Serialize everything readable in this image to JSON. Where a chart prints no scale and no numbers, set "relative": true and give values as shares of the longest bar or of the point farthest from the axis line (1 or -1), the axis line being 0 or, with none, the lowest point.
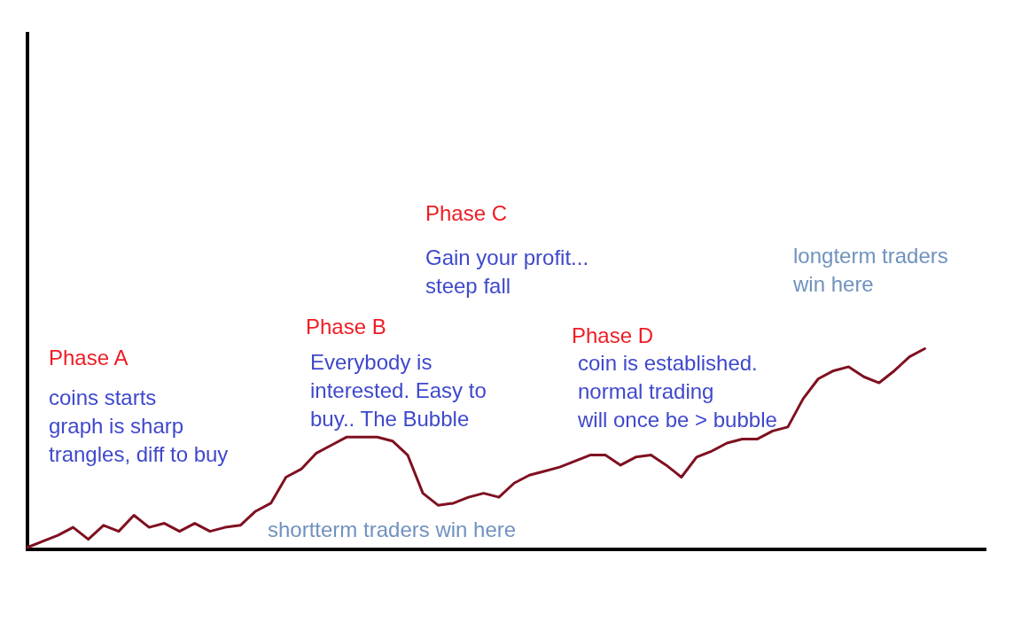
{
  "chart_data": {
    "type": "line",
    "relative": true,
    "color": "#7f1020",
    "grid": false,
    "legend": false,
    "tick_labels": false,
    "marker": "none",
    "line_style": "solid",
    "categories": [
      null,
      null,
      null,
      null,
      null,
      null,
      null,
      null,
      null,
      null,
      null,
      null,
      null,
      null,
      null,
      null,
      null,
      null,
      null,
      null,
      null,
      null,
      null,
      null,
      null,
      null,
      null,
      null,
      null,
      null,
      null,
      null,
      null,
      null,
      null,
      null,
      null,
      null,
      null,
      null,
      null,
      null,
      null,
      null,
      null,
      null,
      null,
      null,
      null,
      null,
      null,
      null,
      null,
      null,
      null,
      null,
      null,
      null,
      null,
      null,
      null,
      null,
      null,
      null
    ],
    "values": [
      0.01,
      0.04,
      0.07,
      0.11,
      0.05,
      0.12,
      0.09,
      0.17,
      0.11,
      0.13,
      0.09,
      0.13,
      0.09,
      0.11,
      0.12,
      0.19,
      0.23,
      0.36,
      0.4,
      0.48,
      0.52,
      0.56,
      0.56,
      0.56,
      0.54,
      0.47,
      0.28,
      0.22,
      0.23,
      0.26,
      0.28,
      0.26,
      0.33,
      0.37,
      0.39,
      0.41,
      0.44,
      0.47,
      0.47,
      0.42,
      0.46,
      0.47,
      0.42,
      0.36,
      0.46,
      0.49,
      0.53,
      0.55,
      0.55,
      0.59,
      0.61,
      0.75,
      0.85,
      0.89,
      0.91,
      0.86,
      0.83,
      0.89,
      0.96,
      1.0,
      null,
      null,
      null,
      null
    ],
    "annotations": [
      "Phase A",
      "coins starts\ngraph is sharp\ntrangles, diff to buy",
      "Phase B",
      "Everybody is\ninterested. Easy to\nbuy.. The Bubble",
      "Phase C",
      "Gain your profit...\nsteep fall",
      "Phase D",
      "coin is established.\nnormal trading\nwill once be > bubble",
      "shortterm traders win here",
      "longterm traders\nwin here"
    ]
  }
}
